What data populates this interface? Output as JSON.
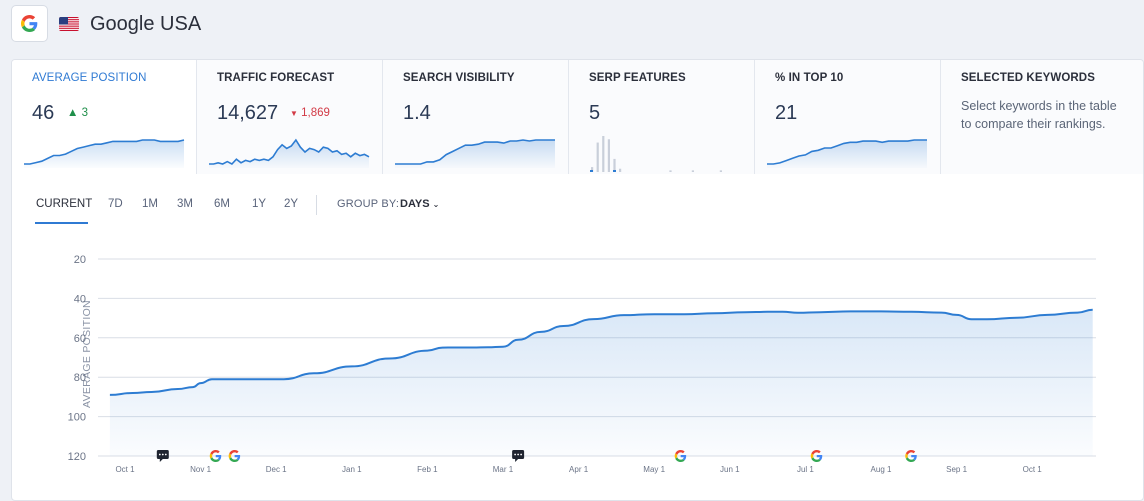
{
  "header": {
    "title": "Google USA",
    "engine_icon": "google-g-icon",
    "flag_icon": "us-flag-icon"
  },
  "metrics": [
    {
      "id": "average-position",
      "label": "AVERAGE POSITION",
      "value": "46",
      "delta": "3",
      "delta_dir": "up",
      "spark": [
        86,
        86,
        85,
        84,
        82,
        80,
        80,
        79,
        77,
        75,
        74,
        73,
        72,
        72,
        71,
        70,
        70,
        70,
        70,
        70,
        69,
        69,
        69,
        70,
        70,
        70,
        70,
        69
      ]
    },
    {
      "id": "traffic-forecast",
      "label": "TRAFFIC FORECAST",
      "value": "14,627",
      "delta": "1,869",
      "delta_dir": "down",
      "spark": [
        14,
        14,
        15,
        14,
        16,
        14,
        18,
        15,
        17,
        16,
        18,
        17,
        18,
        17,
        20,
        26,
        30,
        27,
        29,
        34,
        28,
        24,
        27,
        26,
        24,
        28,
        27,
        24,
        25,
        22,
        23,
        20,
        23,
        21,
        22,
        20
      ]
    },
    {
      "id": "search-visibility",
      "label": "SEARCH VISIBILITY",
      "value": "1.4",
      "spark": [
        10,
        10,
        10,
        10,
        10,
        12,
        12,
        14,
        19,
        22,
        25,
        28,
        28,
        29,
        31,
        31,
        31,
        30,
        32,
        32,
        33,
        32,
        33,
        33,
        33,
        33
      ]
    },
    {
      "id": "serp-features",
      "label": "SERP FEATURES",
      "value": "5",
      "bars": [
        3,
        18,
        22,
        20,
        8,
        2,
        0,
        0,
        0,
        0,
        0,
        0,
        0,
        0,
        1,
        0,
        0,
        0,
        1,
        0,
        0,
        0,
        0,
        1,
        0,
        0,
        0,
        0,
        10
      ]
    },
    {
      "id": "pct-in-top-10",
      "label": "% IN TOP 10",
      "value": "21",
      "spark": [
        10,
        10,
        11,
        13,
        15,
        17,
        18,
        21,
        22,
        24,
        24,
        26,
        28,
        29,
        29,
        30,
        30,
        30,
        29,
        30,
        30,
        30,
        30,
        31,
        31,
        31
      ]
    },
    {
      "id": "selected-keywords",
      "label": "SELECTED KEYWORDS",
      "description": "Select keywords in the table to compare their rankings."
    }
  ],
  "timeframe": {
    "tabs": [
      "CURRENT",
      "7D",
      "1M",
      "3M",
      "6M",
      "1Y",
      "2Y"
    ],
    "active": "CURRENT",
    "group_by_label": "GROUP BY:",
    "group_by_value": "DAYS"
  },
  "colors": {
    "accent": "#2f7ad3",
    "line": "#2d7cd2",
    "up": "#1f8f4a",
    "down": "#d23a46"
  },
  "chart_data": {
    "type": "area",
    "ylabel": "AVERAGE POSITION",
    "y_inverted": true,
    "ylim": [
      20,
      120
    ],
    "yticks": [
      20,
      40,
      60,
      80,
      100,
      120
    ],
    "xticks": [
      "Oct 1",
      "Nov 1",
      "Dec 1",
      "Jan 1",
      "Feb 1",
      "Mar 1",
      "Apr 1",
      "May 1",
      "Jun 1",
      "Jul 1",
      "Aug 1",
      "Sep 1",
      "Oct 1"
    ],
    "series": [
      {
        "x": [
          -0.2,
          0.1,
          0.35,
          0.7,
          0.9,
          1.0,
          1.15,
          1.5,
          1.8,
          2.1,
          2.5,
          3.0,
          3.5,
          4.0,
          4.2,
          4.35,
          4.6,
          4.8,
          5.0,
          5.2,
          5.5,
          5.8,
          6.2,
          6.6,
          7.0,
          7.4,
          7.8,
          8.2,
          8.5,
          8.7,
          8.9,
          9.2,
          9.6,
          10.0,
          10.4,
          10.8,
          11.0,
          11.2,
          11.4,
          11.8,
          12.2,
          12.6,
          12.8
        ],
        "y": [
          89,
          88,
          87.5,
          86,
          85,
          83,
          81,
          81,
          81,
          81,
          78,
          74.5,
          70.5,
          66.5,
          65,
          64.9,
          64.9,
          64.8,
          64.5,
          61,
          57,
          54,
          50.5,
          48.5,
          48,
          48,
          47.5,
          47,
          46.8,
          46.8,
          47.3,
          47,
          46.6,
          46.6,
          46.8,
          47.2,
          48.4,
          50.6,
          50.6,
          49.8,
          48.4,
          47.2,
          45.8
        ]
      }
    ],
    "markers": [
      {
        "type": "annotation",
        "x": 0.5
      },
      {
        "type": "google-update",
        "x": 1.2
      },
      {
        "type": "google-update",
        "x": 1.45
      },
      {
        "type": "annotation",
        "x": 5.2
      },
      {
        "type": "google-update",
        "x": 7.35
      },
      {
        "type": "google-update",
        "x": 9.15
      },
      {
        "type": "google-update",
        "x": 10.4
      }
    ]
  }
}
